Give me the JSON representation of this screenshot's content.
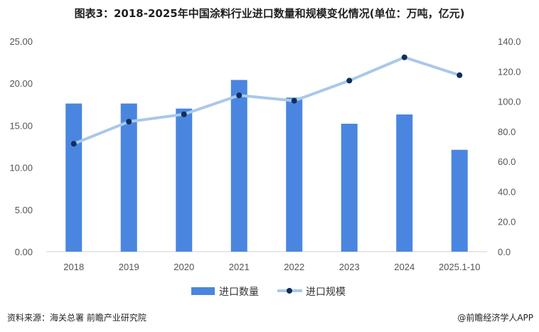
{
  "title": "图表3：2018-2025年中国涂料行业进口数量和规模变化情况(单位：万吨，亿元)",
  "footer": {
    "source": "资料来源：海关总署 前瞻产业研究院",
    "credit": "@前瞻经济学人APP"
  },
  "colors": {
    "bar": "#4a86e0",
    "line": "#a9c8ea",
    "marker": "#0d2f5e"
  },
  "chart_data": {
    "type": "bar",
    "categories": [
      "2018",
      "2019",
      "2020",
      "2021",
      "2022",
      "2023",
      "2024",
      "2025.1-10"
    ],
    "series": [
      {
        "name": "进口数量",
        "type": "bar",
        "axis": "left",
        "values": [
          17.6,
          17.6,
          17.0,
          20.4,
          18.3,
          15.2,
          16.3,
          12.1
        ]
      },
      {
        "name": "进口规模",
        "type": "line",
        "axis": "right",
        "values": [
          71.8,
          86.5,
          91.4,
          104.0,
          100.4,
          113.8,
          129.3,
          117.4
        ]
      }
    ],
    "y_left": {
      "min": 0,
      "max": 25,
      "step": 5,
      "decimals": 2
    },
    "y_right": {
      "min": 0,
      "max": 140,
      "step": 20,
      "decimals": 1
    },
    "grid": false,
    "legend": "bottom-center"
  }
}
